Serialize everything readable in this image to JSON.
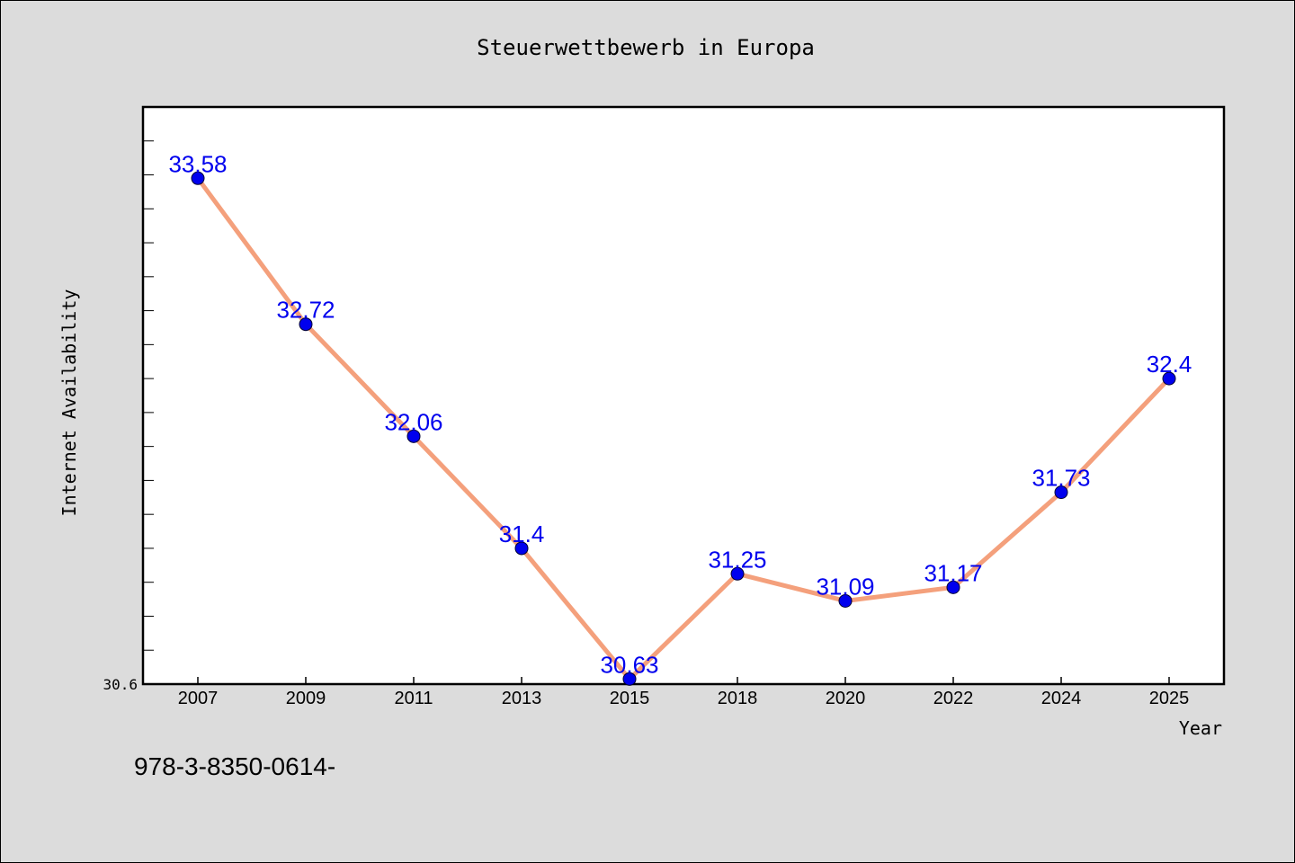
{
  "chart_data": {
    "type": "line",
    "title": "Steuerwettbewerb in Europa",
    "xlabel": "Year",
    "ylabel": "Internet Availability",
    "categories": [
      "2007",
      "2009",
      "2011",
      "2013",
      "2015",
      "2018",
      "2020",
      "2022",
      "2024",
      "2025"
    ],
    "series": [
      {
        "values": [
          33.58,
          32.72,
          32.06,
          31.4,
          30.63,
          31.25,
          31.09,
          31.17,
          31.73,
          32.4
        ],
        "line_color": "#f4a07c",
        "marker_color": "#0000ee",
        "label_color": "#0000ee"
      }
    ],
    "ylim": [
      30.6,
      34.0
    ],
    "y_min_label": "30.6",
    "grid": false,
    "legend": "none"
  },
  "footer_text": "978-3-8350-0614-"
}
